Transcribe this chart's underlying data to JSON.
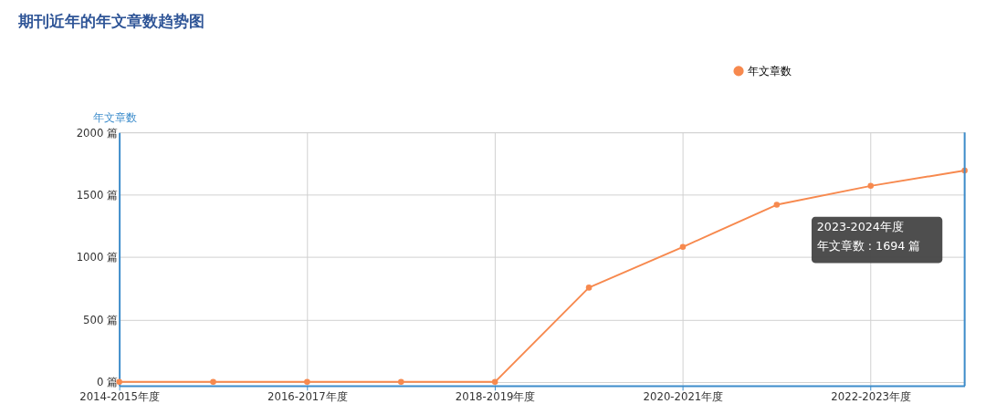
{
  "chart_data": {
    "type": "line",
    "title": "期刊近年的年文章数趋势图",
    "ylabel": "年文章数",
    "categories": [
      "2014-2015年度",
      null,
      "2016-2017年度",
      null,
      "2018-2019年度",
      null,
      "2020-2021年度",
      null,
      "2022-2023年度",
      null
    ],
    "series": [
      {
        "name": "年文章数",
        "color": "#f7894e",
        "values": [
          0,
          0,
          0,
          0,
          0,
          756,
          1082,
          1420,
          1571,
          1694
        ]
      }
    ],
    "ylim": [
      -30,
      2000
    ],
    "yticks": [
      {
        "value": 0,
        "label": "0 篇"
      },
      {
        "value": 500,
        "label": "500 篇"
      },
      {
        "value": 1000,
        "label": "1000 篇"
      },
      {
        "value": 1500,
        "label": "1500 篇"
      },
      {
        "value": 2000,
        "label": "2000 篇"
      }
    ],
    "annotations": [
      "2023-2024年度",
      "年文章数 : 1694 篇"
    ],
    "grid": true,
    "legend": "top right",
    "marker": "circle",
    "line_style": "solid"
  }
}
